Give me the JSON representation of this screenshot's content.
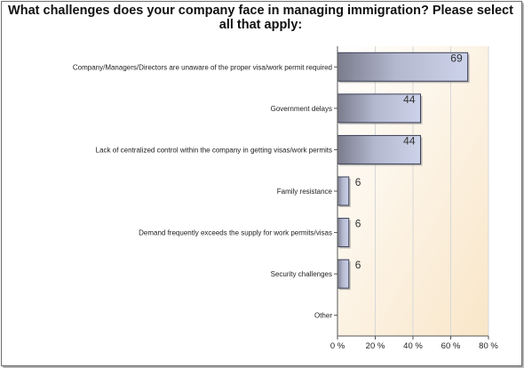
{
  "chart_data": {
    "type": "bar",
    "orientation": "horizontal",
    "title": "What challenges does your company face in managing immigration? Please select all that apply:",
    "categories": [
      "Company/Managers/Directors are unaware of the proper visa/work permit required",
      "Government delays",
      "Lack of centralized control within the company in getting visas/work permits",
      "Family resistance",
      "Demand frequently exceeds the supply for work permits/visas",
      "Security challenges",
      "Other"
    ],
    "values": [
      69,
      44,
      44,
      6,
      6,
      6,
      0
    ],
    "data_labels": [
      "69",
      "44",
      "44",
      "6",
      "6",
      "6",
      ""
    ],
    "xlim": [
      0,
      80
    ],
    "x_ticks": [
      "0 %",
      "20 %",
      "40 %",
      "60 %",
      "80 %"
    ],
    "x_tick_values": [
      0,
      20,
      40,
      60,
      80
    ],
    "grid": true,
    "colors": {
      "bar_dark": "#7a7c8c",
      "bar_light": "#c9cfe6",
      "plot_bg_top": "#ffffff",
      "plot_bg_bottom": "#f9e6c8",
      "grid": "#d8d8d8"
    }
  }
}
